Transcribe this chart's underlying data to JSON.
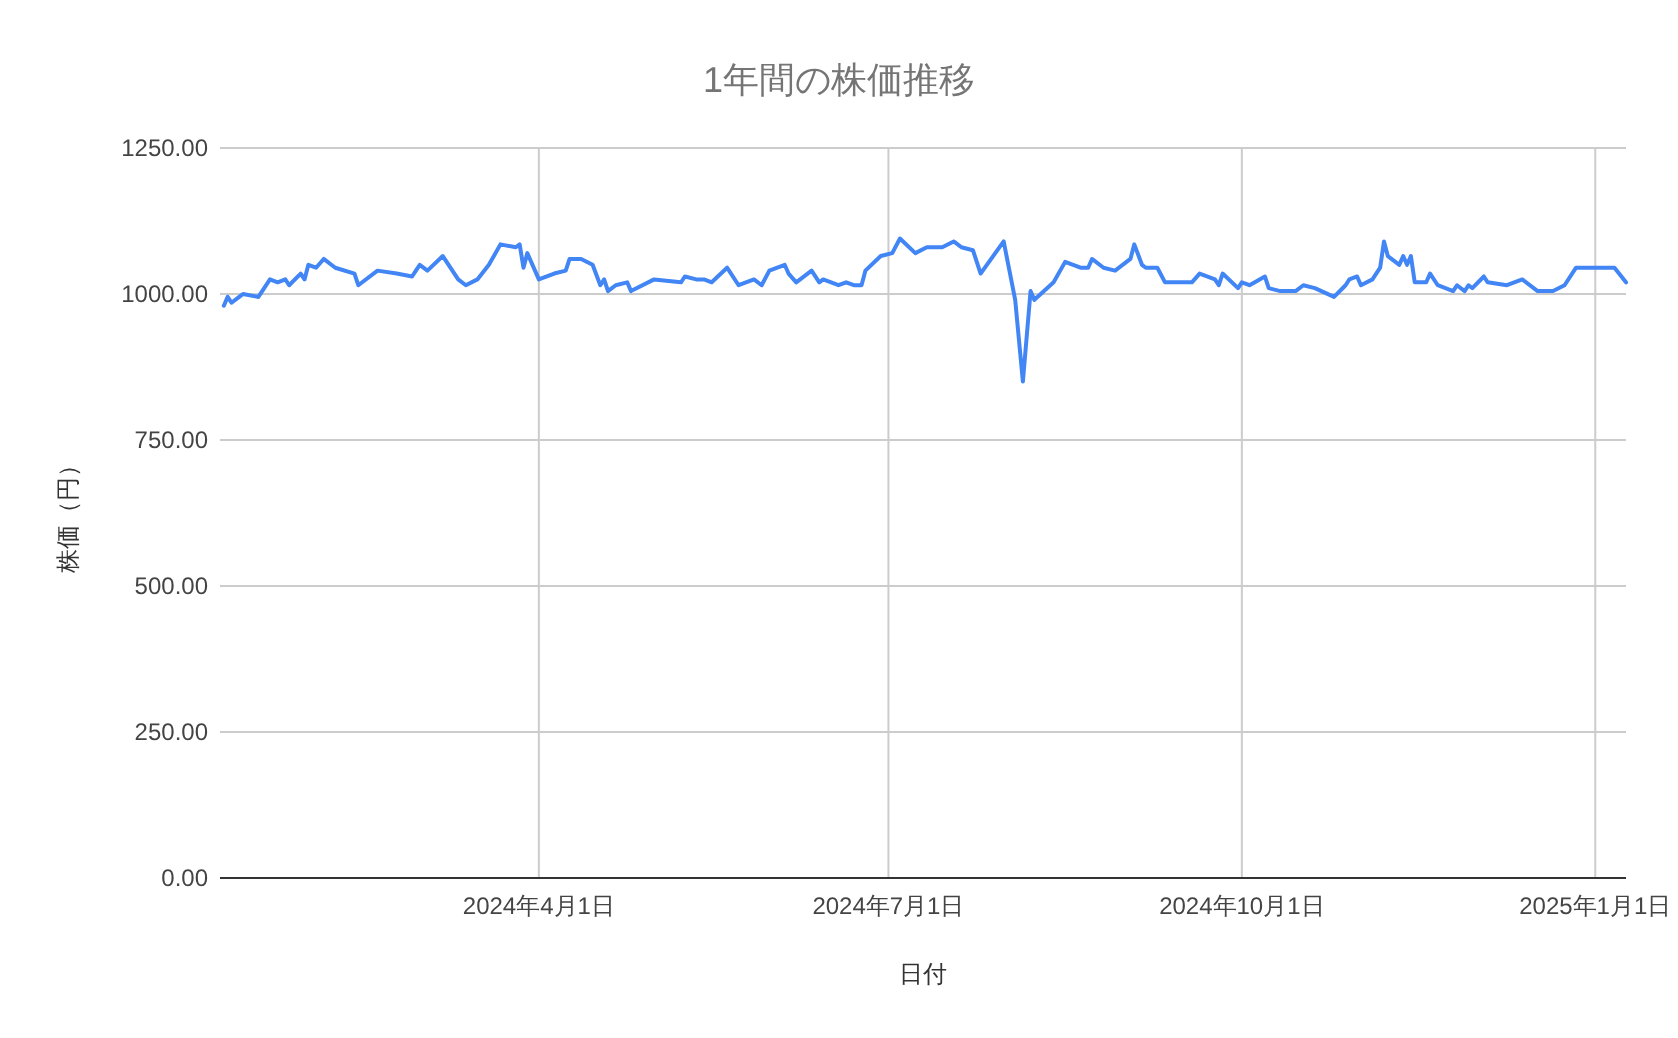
{
  "chart_data": {
    "type": "line",
    "title": "1年間の株価推移",
    "xlabel": "日付",
    "ylabel": "株価（円）",
    "grid": true,
    "marker": "none",
    "line_style": "solid",
    "xlim": [
      "2024-01-09",
      "2025-01-09"
    ],
    "xticks": [
      {
        "value": "2024-04-01",
        "label": "2024年4月1日"
      },
      {
        "value": "2024-07-01",
        "label": "2024年7月1日"
      },
      {
        "value": "2024-10-01",
        "label": "2024年10月1日"
      },
      {
        "value": "2025-01-01",
        "label": "2025年1月1日"
      }
    ],
    "ylim": [
      0,
      1250
    ],
    "yticks": [
      {
        "value": 0,
        "label": "0.00"
      },
      {
        "value": 250,
        "label": "250.00"
      },
      {
        "value": 500,
        "label": "500.00"
      },
      {
        "value": 750,
        "label": "750.00"
      },
      {
        "value": 1000,
        "label": "1000.00"
      },
      {
        "value": 1250,
        "label": "1250.00"
      }
    ],
    "series": [
      {
        "color": "#4285f4",
        "x": [
          "2024-01-10",
          "2024-01-11",
          "2024-01-12",
          "2024-01-14",
          "2024-01-15",
          "2024-01-19",
          "2024-01-22",
          "2024-01-24",
          "2024-01-26",
          "2024-01-27",
          "2024-01-30",
          "2024-01-31",
          "2024-02-01",
          "2024-02-03",
          "2024-02-05",
          "2024-02-08",
          "2024-02-13",
          "2024-02-14",
          "2024-02-19",
          "2024-02-24",
          "2024-02-28",
          "2024-02-29",
          "2024-03-01",
          "2024-03-03",
          "2024-03-07",
          "2024-03-11",
          "2024-03-13",
          "2024-03-16",
          "2024-03-19",
          "2024-03-22",
          "2024-03-26",
          "2024-03-27",
          "2024-03-28",
          "2024-03-29",
          "2024-04-01",
          "2024-04-05",
          "2024-04-08",
          "2024-04-09",
          "2024-04-12",
          "2024-04-15",
          "2024-04-17",
          "2024-04-18",
          "2024-04-19",
          "2024-04-21",
          "2024-04-24",
          "2024-04-25",
          "2024-05-01",
          "2024-05-08",
          "2024-05-09",
          "2024-05-12",
          "2024-05-14",
          "2024-05-16",
          "2024-05-20",
          "2024-05-23",
          "2024-05-27",
          "2024-05-29",
          "2024-05-31",
          "2024-06-04",
          "2024-06-05",
          "2024-06-07",
          "2024-06-11",
          "2024-06-13",
          "2024-06-14",
          "2024-06-18",
          "2024-06-20",
          "2024-06-22",
          "2024-06-24",
          "2024-06-25",
          "2024-06-29",
          "2024-07-02",
          "2024-07-04",
          "2024-07-08",
          "2024-07-11",
          "2024-07-15",
          "2024-07-18",
          "2024-07-20",
          "2024-07-23",
          "2024-07-25",
          "2024-07-31",
          "2024-08-03",
          "2024-08-05",
          "2024-08-07",
          "2024-08-08",
          "2024-08-13",
          "2024-08-16",
          "2024-08-20",
          "2024-08-22",
          "2024-08-23",
          "2024-08-26",
          "2024-08-29",
          "2024-09-02",
          "2024-09-03",
          "2024-09-05",
          "2024-09-06",
          "2024-09-09",
          "2024-09-11",
          "2024-09-15",
          "2024-09-18",
          "2024-09-20",
          "2024-09-24",
          "2024-09-25",
          "2024-09-26",
          "2024-09-30",
          "2024-10-01",
          "2024-10-03",
          "2024-10-07",
          "2024-10-08",
          "2024-10-11",
          "2024-10-15",
          "2024-10-17",
          "2024-10-20",
          "2024-10-25",
          "2024-10-28",
          "2024-10-29",
          "2024-10-31",
          "2024-11-01",
          "2024-11-04",
          "2024-11-06",
          "2024-11-07",
          "2024-11-08",
          "2024-11-11",
          "2024-11-12",
          "2024-11-13",
          "2024-11-14",
          "2024-11-15",
          "2024-11-18",
          "2024-11-19",
          "2024-11-21",
          "2024-11-25",
          "2024-11-26",
          "2024-11-28",
          "2024-11-29",
          "2024-11-30",
          "2024-12-03",
          "2024-12-04",
          "2024-12-09",
          "2024-12-13",
          "2024-12-17",
          "2024-12-21",
          "2024-12-24",
          "2024-12-27",
          "2025-01-06",
          "2025-01-09"
        ],
        "values": [
          980,
          995,
          985,
          995,
          1000,
          995,
          1025,
          1020,
          1025,
          1015,
          1035,
          1025,
          1050,
          1045,
          1060,
          1045,
          1035,
          1015,
          1040,
          1035,
          1030,
          1040,
          1050,
          1040,
          1065,
          1025,
          1015,
          1025,
          1050,
          1085,
          1080,
          1085,
          1045,
          1070,
          1025,
          1035,
          1040,
          1060,
          1060,
          1050,
          1015,
          1025,
          1005,
          1015,
          1020,
          1005,
          1025,
          1020,
          1030,
          1025,
          1025,
          1020,
          1045,
          1015,
          1025,
          1015,
          1040,
          1050,
          1035,
          1020,
          1040,
          1020,
          1025,
          1015,
          1020,
          1015,
          1015,
          1040,
          1065,
          1070,
          1095,
          1070,
          1080,
          1080,
          1090,
          1080,
          1075,
          1035,
          1090,
          990,
          850,
          1005,
          990,
          1020,
          1055,
          1045,
          1045,
          1060,
          1045,
          1040,
          1060,
          1085,
          1050,
          1045,
          1045,
          1020,
          1020,
          1020,
          1035,
          1025,
          1015,
          1035,
          1010,
          1020,
          1015,
          1030,
          1010,
          1005,
          1005,
          1015,
          1010,
          995,
          1015,
          1025,
          1030,
          1015,
          1025,
          1045,
          1090,
          1065,
          1050,
          1065,
          1050,
          1065,
          1020,
          1020,
          1035,
          1015,
          1005,
          1015,
          1005,
          1015,
          1010,
          1030,
          1020,
          1015,
          1025,
          1005,
          1005,
          1015,
          1045,
          1045,
          1020
        ]
      }
    ]
  }
}
